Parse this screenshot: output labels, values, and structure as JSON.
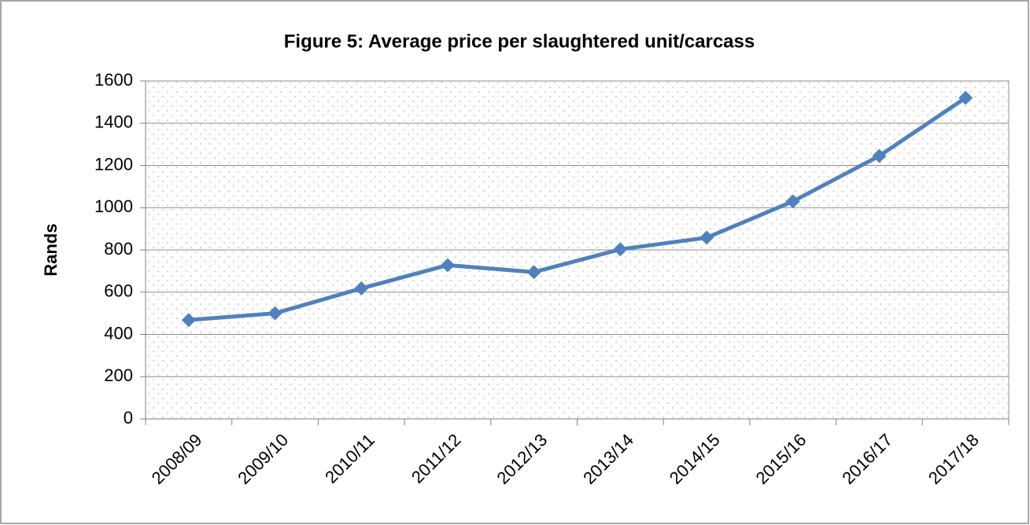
{
  "chart_data": {
    "type": "line",
    "title": "Figure 5: Average price per slaughtered unit/carcass",
    "y_label": "Rands",
    "categories": [
      "2008/09",
      "2009/10",
      "2010/11",
      "2011/12",
      "2012/13",
      "2013/14",
      "2014/15",
      "2015/16",
      "2016/17",
      "2017/18"
    ],
    "series": [
      {
        "name": "Average price",
        "color": "#4f81bd",
        "values": [
          468,
          500,
          618,
          728,
          695,
          803,
          858,
          1030,
          1245,
          1520
        ]
      }
    ],
    "ylim": [
      0,
      1600
    ],
    "yticks": [
      0,
      200,
      400,
      600,
      800,
      1000,
      1200,
      1400,
      1600
    ],
    "grid": true
  }
}
